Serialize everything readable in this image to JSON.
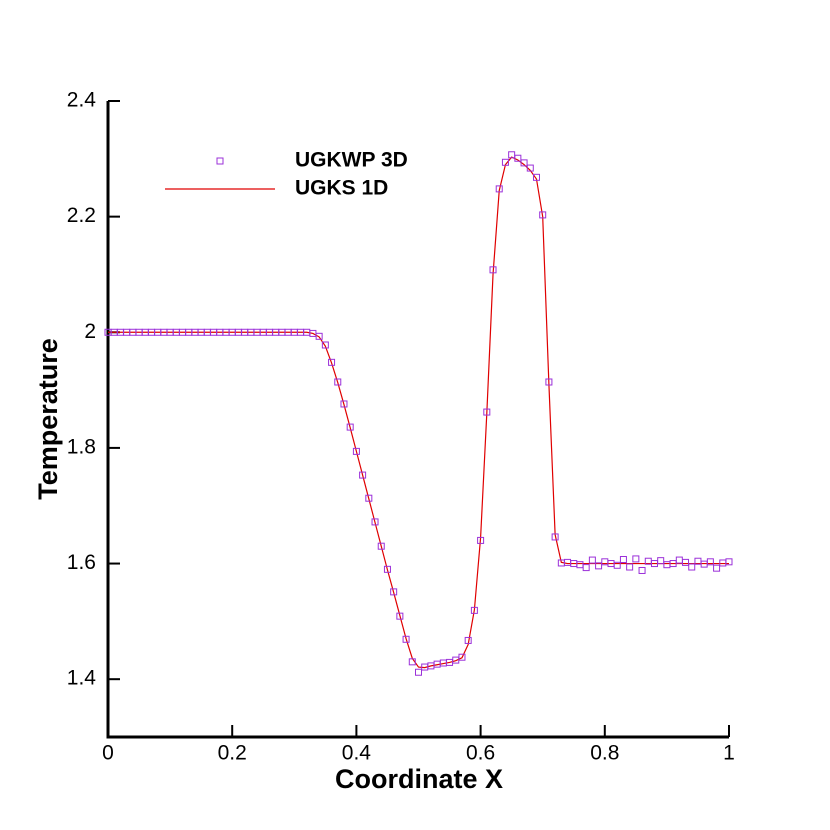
{
  "chart_data": {
    "type": "scatter-line",
    "x_label": "Coordinate X",
    "y_label": "Temperature",
    "xlim": [
      0,
      1
    ],
    "ylim": [
      1.3,
      2.4
    ],
    "xticks": [
      0,
      0.2,
      0.4,
      0.6,
      0.8,
      1
    ],
    "yticks": [
      1.4,
      1.6,
      1.8,
      2,
      2.2,
      2.4
    ],
    "series": [
      {
        "name": "UGKWP 3D",
        "kind": "scatter",
        "color": "#9b30d9",
        "x": [
          0,
          0.01,
          0.02,
          0.03,
          0.04,
          0.05,
          0.06,
          0.07,
          0.08,
          0.09,
          0.1,
          0.11,
          0.12,
          0.13,
          0.14,
          0.15,
          0.16,
          0.17,
          0.18,
          0.19,
          0.2,
          0.21,
          0.22,
          0.23,
          0.24,
          0.25,
          0.26,
          0.27,
          0.28,
          0.29,
          0.3,
          0.31,
          0.32,
          0.33,
          0.34,
          0.35,
          0.36,
          0.37,
          0.38,
          0.39,
          0.4,
          0.41,
          0.42,
          0.43,
          0.44,
          0.45,
          0.46,
          0.47,
          0.48,
          0.49,
          0.5,
          0.51,
          0.52,
          0.53,
          0.54,
          0.55,
          0.56,
          0.57,
          0.58,
          0.59,
          0.6,
          0.61,
          0.62,
          0.63,
          0.64,
          0.65,
          0.66,
          0.67,
          0.68,
          0.69,
          0.7,
          0.71,
          0.72,
          0.73,
          0.74,
          0.75,
          0.76,
          0.77,
          0.78,
          0.79,
          0.8,
          0.81,
          0.82,
          0.83,
          0.84,
          0.85,
          0.86,
          0.87,
          0.88,
          0.89,
          0.9,
          0.91,
          0.92,
          0.93,
          0.94,
          0.95,
          0.96,
          0.97,
          0.98,
          0.99,
          1
        ],
        "values": [
          2,
          2,
          2,
          2,
          2,
          2,
          2,
          2,
          2,
          2,
          2,
          2,
          2,
          2,
          2,
          2,
          2,
          2,
          2,
          2,
          2,
          2,
          2,
          2,
          2,
          2,
          2,
          2,
          2,
          2,
          2,
          2,
          2,
          1.998,
          1.993,
          1.978,
          1.948,
          1.914,
          1.876,
          1.836,
          1.794,
          1.753,
          1.713,
          1.672,
          1.63,
          1.59,
          1.551,
          1.509,
          1.469,
          1.43,
          1.412,
          1.421,
          1.423,
          1.426,
          1.428,
          1.429,
          1.433,
          1.438,
          1.467,
          1.519,
          1.64,
          1.862,
          2.108,
          2.248,
          2.294,
          2.307,
          2.301,
          2.293,
          2.284,
          2.268,
          2.203,
          1.914,
          1.646,
          1.601,
          1.602,
          1.6,
          1.598,
          1.593,
          1.606,
          1.596,
          1.603,
          1.6,
          1.597,
          1.607,
          1.594,
          1.608,
          1.588,
          1.604,
          1.6,
          1.605,
          1.598,
          1.6,
          1.606,
          1.602,
          1.594,
          1.604,
          1.599,
          1.603,
          1.592,
          1.601,
          1.603
        ]
      },
      {
        "name": "UGKS 1D",
        "kind": "line",
        "color": "#e00000",
        "x": [
          0,
          0.05,
          0.1,
          0.15,
          0.2,
          0.25,
          0.3,
          0.32,
          0.33,
          0.34,
          0.35,
          0.36,
          0.37,
          0.38,
          0.39,
          0.4,
          0.41,
          0.42,
          0.43,
          0.44,
          0.45,
          0.46,
          0.47,
          0.48,
          0.49,
          0.5,
          0.51,
          0.52,
          0.53,
          0.54,
          0.55,
          0.56,
          0.57,
          0.58,
          0.59,
          0.6,
          0.61,
          0.62,
          0.63,
          0.64,
          0.65,
          0.66,
          0.67,
          0.68,
          0.69,
          0.7,
          0.71,
          0.72,
          0.73,
          0.74,
          0.8,
          0.9,
          1
        ],
        "values": [
          2,
          2,
          2,
          2,
          2,
          2,
          2,
          2,
          1.998,
          1.992,
          1.976,
          1.947,
          1.913,
          1.875,
          1.835,
          1.794,
          1.753,
          1.712,
          1.671,
          1.63,
          1.589,
          1.55,
          1.51,
          1.47,
          1.436,
          1.421,
          1.42,
          1.423,
          1.425,
          1.427,
          1.429,
          1.432,
          1.437,
          1.46,
          1.52,
          1.645,
          1.86,
          2.1,
          2.245,
          2.29,
          2.303,
          2.298,
          2.29,
          2.28,
          2.265,
          2.2,
          1.91,
          1.65,
          1.602,
          1.6,
          1.6,
          1.6,
          1.6
        ]
      }
    ]
  }
}
